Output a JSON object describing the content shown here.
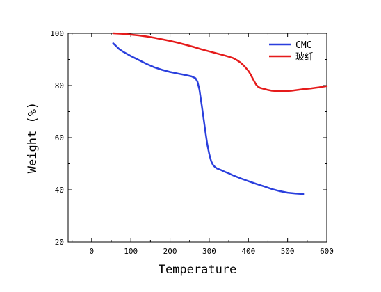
{
  "chart_data": {
    "type": "line",
    "title": "",
    "xlabel": "Temperature",
    "ylabel": "Weight (%)",
    "xlim": [
      -60,
      600
    ],
    "ylim": [
      20,
      100
    ],
    "x_ticks": [
      0,
      100,
      200,
      300,
      400,
      500,
      600
    ],
    "x_tick_labels": [
      "0",
      "100",
      "200",
      "300",
      "400",
      "500",
      "600"
    ],
    "y_ticks": [
      20,
      40,
      60,
      80,
      100
    ],
    "y_tick_labels": [
      "20",
      "40",
      "60",
      "80",
      "100"
    ],
    "x_minor_ticks": [
      -50,
      50,
      150,
      250,
      350,
      450,
      550
    ],
    "y_minor_ticks": [
      30,
      50,
      70,
      90
    ],
    "grid": false,
    "legend_position": "top-right",
    "series": [
      {
        "name": "CMC",
        "color": "#2a3fdd",
        "x": [
          55,
          60,
          70,
          80,
          100,
          120,
          140,
          160,
          180,
          200,
          220,
          240,
          255,
          265,
          270,
          275,
          280,
          285,
          290,
          295,
          300,
          305,
          310,
          315,
          320,
          330,
          340,
          350,
          360,
          380,
          400,
          420,
          440,
          460,
          480,
          500,
          520,
          540
        ],
        "y": [
          96.2,
          95.5,
          94.0,
          93.0,
          91.3,
          89.8,
          88.3,
          87.0,
          86.0,
          85.2,
          84.6,
          84.0,
          83.5,
          82.8,
          81.5,
          78.5,
          73.5,
          68.0,
          62.5,
          57.5,
          53.8,
          51.0,
          49.5,
          48.7,
          48.2,
          47.6,
          46.9,
          46.3,
          45.6,
          44.4,
          43.3,
          42.3,
          41.3,
          40.3,
          39.5,
          38.9,
          38.6,
          38.4
        ]
      },
      {
        "name": "玻纤",
        "color": "#e51b1b",
        "x": [
          55,
          80,
          100,
          120,
          140,
          160,
          180,
          200,
          220,
          240,
          260,
          280,
          300,
          320,
          340,
          360,
          370,
          380,
          390,
          400,
          405,
          410,
          415,
          420,
          425,
          430,
          440,
          450,
          460,
          470,
          480,
          490,
          500,
          510,
          520,
          530,
          540,
          560,
          580,
          600
        ],
        "y": [
          100.0,
          99.8,
          99.5,
          99.2,
          98.8,
          98.3,
          97.7,
          97.1,
          96.4,
          95.6,
          94.8,
          93.9,
          93.1,
          92.3,
          91.5,
          90.6,
          89.8,
          88.8,
          87.4,
          85.6,
          84.4,
          83.0,
          81.6,
          80.3,
          79.5,
          79.1,
          78.7,
          78.3,
          78.0,
          77.9,
          77.9,
          77.9,
          77.9,
          78.0,
          78.2,
          78.4,
          78.6,
          78.9,
          79.3,
          79.8
        ]
      }
    ]
  }
}
